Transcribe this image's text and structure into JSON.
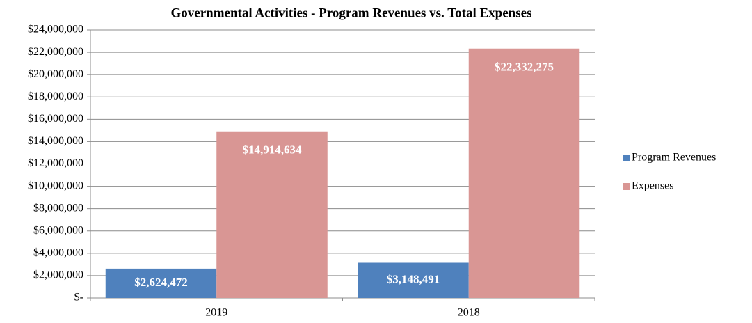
{
  "chart_data": {
    "type": "bar",
    "title": "Governmental Activities - Program Revenues vs. Total Expenses",
    "categories": [
      "2019",
      "2018"
    ],
    "series": [
      {
        "name": "Program Revenues",
        "color": "#4f81bd",
        "values": [
          2624472,
          3148491
        ],
        "value_labels": [
          "$2,624,472",
          "$3,148,491"
        ]
      },
      {
        "name": "Expenses",
        "color": "#d99694",
        "values": [
          14914634,
          22332275
        ],
        "value_labels": [
          "$14,914,634",
          "$22,332,275"
        ]
      }
    ],
    "ylim": [
      0,
      24000000
    ],
    "yticks": [
      {
        "value": 0,
        "label": "$-"
      },
      {
        "value": 2000000,
        "label": "$2,000,000"
      },
      {
        "value": 4000000,
        "label": "$4,000,000"
      },
      {
        "value": 6000000,
        "label": "$6,000,000"
      },
      {
        "value": 8000000,
        "label": "$8,000,000"
      },
      {
        "value": 10000000,
        "label": "$10,000,000"
      },
      {
        "value": 12000000,
        "label": "$12,000,000"
      },
      {
        "value": 14000000,
        "label": "$14,000,000"
      },
      {
        "value": 16000000,
        "label": "$16,000,000"
      },
      {
        "value": 18000000,
        "label": "$18,000,000"
      },
      {
        "value": 20000000,
        "label": "$20,000,000"
      },
      {
        "value": 22000000,
        "label": "$22,000,000"
      },
      {
        "value": 24000000,
        "label": "$24,000,000"
      }
    ],
    "grid": true,
    "legend": "right"
  }
}
